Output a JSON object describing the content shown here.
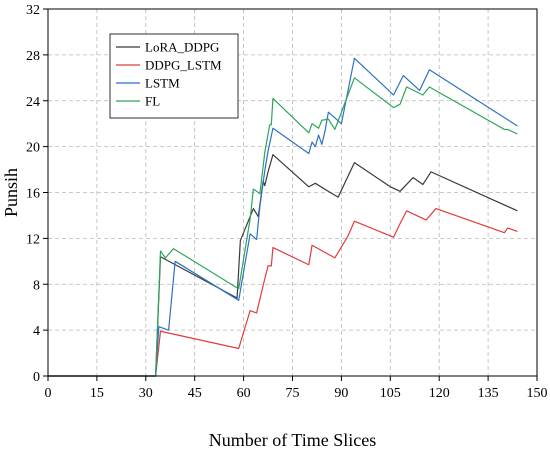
{
  "chart_data": {
    "type": "line",
    "title": "",
    "xlabel": "Number of Time Slices",
    "ylabel": "Punsih",
    "xlim": [
      0,
      150
    ],
    "ylim": [
      0,
      32
    ],
    "xticks": [
      0,
      15,
      30,
      45,
      60,
      75,
      90,
      105,
      120,
      135,
      150
    ],
    "yticks": [
      0,
      4,
      8,
      12,
      16,
      20,
      24,
      28,
      32
    ],
    "grid": true,
    "legend_position": "top-left",
    "series": [
      {
        "name": "LoRA_DDPG",
        "color": "#3a3a3a",
        "points": [
          [
            0,
            0
          ],
          [
            33,
            0
          ],
          [
            34.5,
            10.4
          ],
          [
            58,
            6.8
          ],
          [
            59,
            11.8
          ],
          [
            63,
            14.6
          ],
          [
            64.5,
            13.9
          ],
          [
            66,
            17.0
          ],
          [
            66.5,
            16.6
          ],
          [
            67.5,
            17.8
          ],
          [
            69,
            19.3
          ],
          [
            80,
            16.5
          ],
          [
            82,
            16.8
          ],
          [
            86,
            16.1
          ],
          [
            89,
            15.6
          ],
          [
            94,
            18.6
          ],
          [
            105,
            16.5
          ],
          [
            108,
            16.1
          ],
          [
            112,
            17.3
          ],
          [
            115,
            16.7
          ],
          [
            117.5,
            17.8
          ],
          [
            144,
            14.4
          ]
        ]
      },
      {
        "name": "DDPG_LSTM",
        "color": "#e03c3c",
        "points": [
          [
            0,
            0
          ],
          [
            33,
            0
          ],
          [
            34.5,
            3.9
          ],
          [
            58.5,
            2.4
          ],
          [
            62,
            5.7
          ],
          [
            64,
            5.5
          ],
          [
            66,
            7.9
          ],
          [
            67.5,
            9.6
          ],
          [
            68.5,
            9.6
          ],
          [
            69,
            11.2
          ],
          [
            80,
            9.7
          ],
          [
            81,
            11.4
          ],
          [
            88,
            10.3
          ],
          [
            92,
            12.2
          ],
          [
            94,
            13.5
          ],
          [
            106,
            12.1
          ],
          [
            108,
            13.3
          ],
          [
            110,
            14.4
          ],
          [
            116,
            13.6
          ],
          [
            119,
            14.6
          ],
          [
            140,
            12.5
          ],
          [
            141,
            12.9
          ],
          [
            144,
            12.6
          ]
        ]
      },
      {
        "name": "LSTM",
        "color": "#2d71c4",
        "points": [
          [
            0,
            0
          ],
          [
            33,
            0
          ],
          [
            34,
            4.3
          ],
          [
            37,
            4.0
          ],
          [
            39,
            10.0
          ],
          [
            58.5,
            6.6
          ],
          [
            62,
            12.4
          ],
          [
            64,
            11.9
          ],
          [
            65,
            14.8
          ],
          [
            66.5,
            17.9
          ],
          [
            67.5,
            19.6
          ],
          [
            69,
            21.6
          ],
          [
            80,
            19.4
          ],
          [
            81,
            20.4
          ],
          [
            82,
            20.0
          ],
          [
            83,
            21.0
          ],
          [
            84,
            20.2
          ],
          [
            85,
            21.4
          ],
          [
            86,
            23.0
          ],
          [
            90,
            22.0
          ],
          [
            94,
            27.7
          ],
          [
            106,
            24.5
          ],
          [
            109,
            26.2
          ],
          [
            114,
            24.9
          ],
          [
            117,
            26.7
          ],
          [
            144,
            21.8
          ]
        ]
      },
      {
        "name": "FL",
        "color": "#2ea55a",
        "points": [
          [
            0,
            0
          ],
          [
            33,
            0
          ],
          [
            34.5,
            10.9
          ],
          [
            36,
            10.3
          ],
          [
            38.5,
            11.1
          ],
          [
            58.5,
            7.6
          ],
          [
            62,
            13.7
          ],
          [
            63,
            16.3
          ],
          [
            65,
            15.9
          ],
          [
            66.5,
            19.5
          ],
          [
            68,
            21.9
          ],
          [
            68.5,
            21.9
          ],
          [
            69,
            24.2
          ],
          [
            80,
            21.2
          ],
          [
            81,
            22.0
          ],
          [
            83,
            21.6
          ],
          [
            84,
            22.3
          ],
          [
            86,
            22.4
          ],
          [
            88,
            21.5
          ],
          [
            94,
            26.0
          ],
          [
            106,
            23.4
          ],
          [
            108,
            23.7
          ],
          [
            110,
            25.2
          ],
          [
            115,
            24.5
          ],
          [
            117,
            25.2
          ],
          [
            140,
            21.5
          ],
          [
            141,
            21.5
          ],
          [
            144,
            21.1
          ]
        ]
      }
    ]
  }
}
